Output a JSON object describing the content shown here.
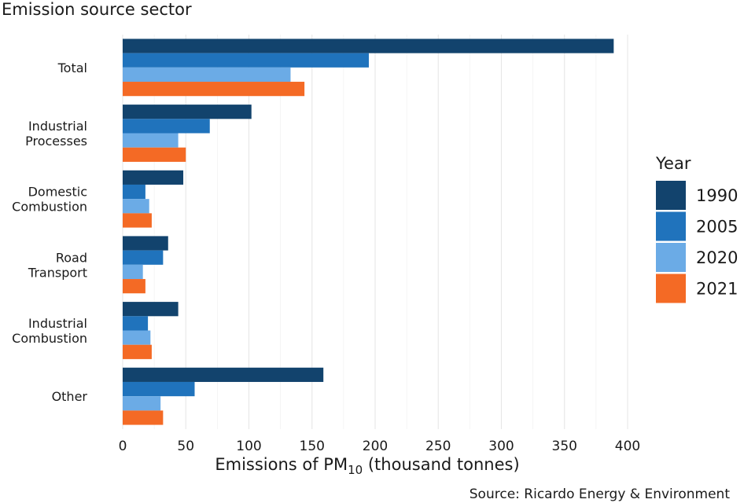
{
  "chart_data": {
    "type": "bar",
    "orientation": "horizontal",
    "title": "",
    "ylabel": "Emission source sector",
    "xlabel": {
      "prefix": "Emissions of PM",
      "subscript": "10",
      "suffix": " (thousand tonnes)"
    },
    "categories": [
      [
        "Total"
      ],
      [
        "Industrial",
        "Processes"
      ],
      [
        "Domestic",
        "Combustion"
      ],
      [
        "Road",
        "Transport"
      ],
      [
        "Industrial",
        "Combustion"
      ],
      [
        "Other"
      ]
    ],
    "series": [
      {
        "name": "1990",
        "color": "#12436d",
        "values": [
          389,
          102,
          48,
          36,
          44,
          159
        ]
      },
      {
        "name": "2005",
        "color": "#2073bc",
        "values": [
          195,
          69,
          18,
          32,
          20,
          57
        ]
      },
      {
        "name": "2020",
        "color": "#6babe6",
        "values": [
          133,
          44,
          21,
          16,
          22,
          30
        ]
      },
      {
        "name": "2021",
        "color": "#f46a25",
        "values": [
          144,
          50,
          23,
          18,
          23,
          32
        ]
      }
    ],
    "xlim": [
      0,
      400
    ],
    "xticks": [
      0,
      50,
      100,
      150,
      200,
      250,
      300,
      350,
      400
    ],
    "grid": true,
    "legend": {
      "title": "Year",
      "position": "right"
    },
    "source": "Source: Ricardo Energy & Environment"
  }
}
